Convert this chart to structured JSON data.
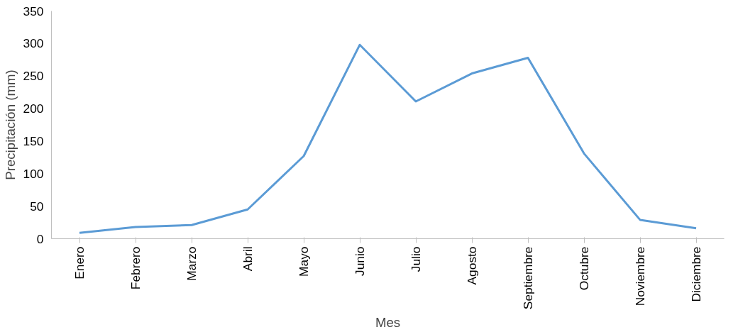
{
  "chart_data": {
    "type": "line",
    "xlabel": "Mes",
    "ylabel": "Precipitación (mm)",
    "categories": [
      "Enero",
      "Febrero",
      "Marzo",
      "Abril",
      "Mayo",
      "Junio",
      "Julio",
      "Agosto",
      "Septiembre",
      "Octubre",
      "Noviembre",
      "Diciembre"
    ],
    "series": [
      {
        "color": "#5b9bd5",
        "values": [
          9,
          18,
          21,
          45,
          127,
          298,
          211,
          254,
          278,
          131,
          29,
          16
        ]
      }
    ],
    "ylim": [
      0,
      350
    ],
    "yticks": [
      0,
      50,
      100,
      150,
      200,
      250,
      300,
      350
    ],
    "grid": false,
    "marker": "none",
    "line_style": "solid"
  }
}
